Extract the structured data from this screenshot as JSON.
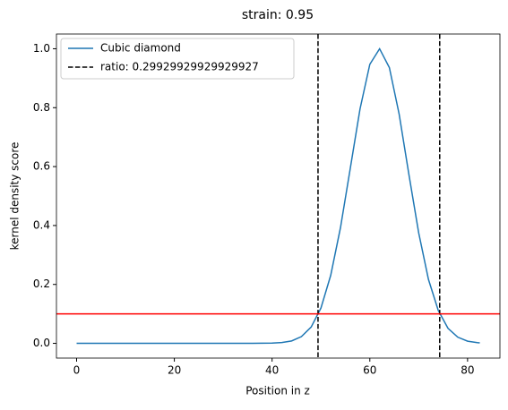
{
  "chart_data": {
    "type": "line",
    "title": "strain: 0.95",
    "xlabel": "Position in z",
    "ylabel": "kernel density score",
    "series": [
      {
        "name": "Cubic diamond",
        "color": "#1f77b4",
        "x": [
          0,
          10,
          20,
          30,
          36,
          40,
          42,
          44,
          46,
          48,
          50,
          52,
          54,
          56,
          58,
          60,
          62,
          64,
          66,
          68,
          70,
          72,
          74,
          76,
          78,
          80,
          82,
          82.5
        ],
        "values": [
          0,
          0,
          0,
          0,
          0,
          0.001,
          0.0027,
          0.0082,
          0.0228,
          0.0555,
          0.12,
          0.231,
          0.393,
          0.594,
          0.796,
          0.947,
          1.0,
          0.936,
          0.778,
          0.573,
          0.375,
          0.217,
          0.112,
          0.051,
          0.021,
          0.0074,
          0.0024,
          0.0017
        ]
      }
    ],
    "vlines": {
      "name": "ratio: 0.29929929929929927",
      "color": "#000000",
      "x": [
        49.4,
        74.3
      ]
    },
    "hline": {
      "value": 0.1,
      "color": "#ff0000"
    },
    "xlim": [
      -4.125,
      86.625
    ],
    "ylim": [
      -0.05,
      1.05
    ],
    "xticks": [
      0,
      20,
      40,
      60,
      80
    ],
    "yticks": [
      {
        "value": 0,
        "label": "0.0"
      },
      0.2,
      0.4,
      0.6,
      0.8,
      {
        "value": 1,
        "label": "1.0"
      }
    ],
    "legend": "upper left"
  }
}
